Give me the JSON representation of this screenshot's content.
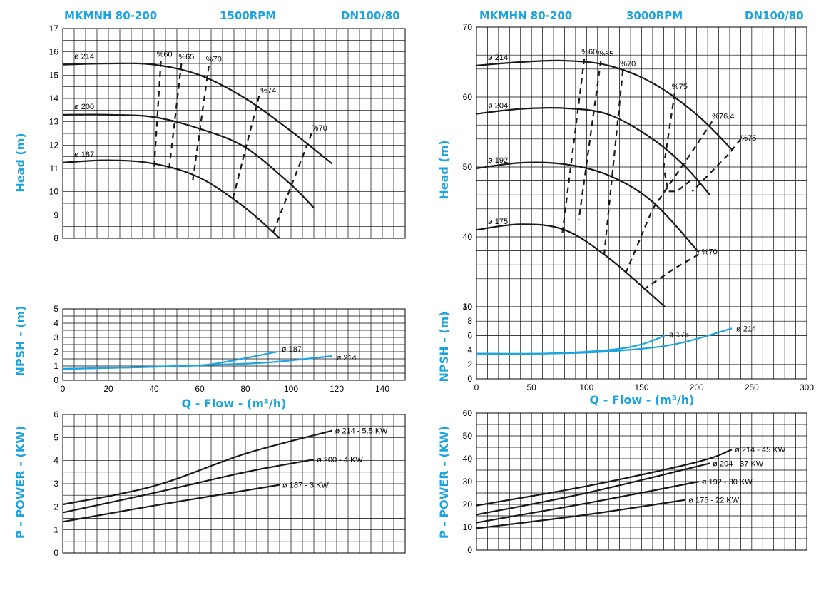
{
  "colors": {
    "accent": "#1ba4e0",
    "curve": "#1a1a1a",
    "npsh": "#1ba4e0",
    "grid": "#000000"
  },
  "left": {
    "header": {
      "model": "MKMNH 80-200",
      "speed": "1500RPM",
      "dn": "DN100/80"
    },
    "head_ylabel": "Head (m)",
    "npsh_ylabel": "NPSH - (m)",
    "power_ylabel": "P - POWER - (KW)",
    "xlabel": "Q - Flow - (m³/h)"
  },
  "right": {
    "header": {
      "model": "MKMHN 80-200",
      "speed": "3000RPM",
      "dn": "DN100/80"
    },
    "head_ylabel": "Head (m)",
    "npsh_ylabel": "NPSH - (m)",
    "power_ylabel": "P - POWER - (KW)",
    "xlabel": "Q - Flow - (m³/h)"
  },
  "chart_data": [
    {
      "id": "L-head",
      "type": "line",
      "xlim": [
        0,
        150
      ],
      "ylim": [
        8,
        17
      ],
      "xticks": [
        0,
        20,
        40,
        60,
        80,
        100,
        120,
        140
      ],
      "yticks": [
        8,
        9,
        10,
        11,
        12,
        13,
        14,
        15,
        16,
        17
      ],
      "series": [
        {
          "name": "ø 214",
          "kind": "curve",
          "x": [
            0,
            20,
            40,
            60,
            80,
            100,
            118
          ],
          "y": [
            15.45,
            15.5,
            15.45,
            15,
            14,
            12.6,
            11.2
          ]
        },
        {
          "name": "ø 200",
          "kind": "curve",
          "x": [
            0,
            20,
            40,
            60,
            80,
            100,
            110
          ],
          "y": [
            13.3,
            13.3,
            13.2,
            12.7,
            11.9,
            10.3,
            9.3
          ]
        },
        {
          "name": "ø 187",
          "kind": "curve",
          "x": [
            0,
            20,
            40,
            60,
            80,
            95
          ],
          "y": [
            11.25,
            11.35,
            11.2,
            10.6,
            9.3,
            8
          ]
        },
        {
          "name": "%60",
          "kind": "eff",
          "x": [
            43,
            40
          ],
          "y": [
            15.6,
            11
          ]
        },
        {
          "name": "%65",
          "kind": "eff",
          "x": [
            52,
            46.5
          ],
          "y": [
            15.5,
            10.9
          ]
        },
        {
          "name": "%70",
          "kind": "eff",
          "x": [
            64,
            57
          ],
          "y": [
            15.4,
            10.5
          ]
        },
        {
          "name": "%74",
          "kind": "eff",
          "x": [
            86,
            74
          ],
          "y": [
            14.1,
            9.5
          ]
        },
        {
          "name": "%70",
          "kind": "eff",
          "x": [
            109,
            92
          ],
          "y": [
            12.5,
            8.2
          ]
        }
      ]
    },
    {
      "id": "L-npsh",
      "type": "line",
      "xlim": [
        0,
        150
      ],
      "ylim": [
        0,
        5
      ],
      "yticks": [
        0,
        1,
        2,
        3,
        4,
        5
      ],
      "series": [
        {
          "name": "ø 187",
          "x": [
            0,
            30,
            60,
            75,
            94
          ],
          "y": [
            0.8,
            0.9,
            1.05,
            1.4,
            2.0
          ]
        },
        {
          "name": "ø 214",
          "x": [
            0,
            30,
            60,
            90,
            118
          ],
          "y": [
            0.8,
            0.9,
            1.05,
            1.25,
            1.7
          ]
        }
      ]
    },
    {
      "id": "L-power",
      "type": "line",
      "xlim": [
        0,
        150
      ],
      "ylim": [
        0,
        6
      ],
      "yticks": [
        0,
        1,
        2,
        3,
        4,
        5,
        6
      ],
      "series": [
        {
          "name": "ø 214 - 5.5 KW",
          "x": [
            0,
            40,
            80,
            118
          ],
          "y": [
            2.1,
            2.9,
            4.3,
            5.3
          ]
        },
        {
          "name": "ø 200 - 4 KW",
          "x": [
            0,
            40,
            80,
            110
          ],
          "y": [
            1.75,
            2.6,
            3.5,
            4.05
          ]
        },
        {
          "name": "ø 187 - 3 KW",
          "x": [
            0,
            40,
            95
          ],
          "y": [
            1.35,
            2.05,
            2.95
          ]
        }
      ]
    },
    {
      "id": "R-head",
      "type": "line",
      "xlim": [
        0,
        300
      ],
      "ylim": [
        30,
        70
      ],
      "xticks": [
        0,
        50,
        100,
        150,
        200,
        250,
        300
      ],
      "yticks": [
        30,
        40,
        50,
        60,
        70
      ],
      "series": [
        {
          "name": "ø 214",
          "kind": "curve",
          "x": [
            0,
            40,
            80,
            120,
            160,
            200,
            232
          ],
          "y": [
            64.5,
            65,
            65.2,
            64.5,
            62,
            57.5,
            52.5
          ]
        },
        {
          "name": "ø 204",
          "kind": "curve",
          "x": [
            0,
            40,
            80,
            120,
            160,
            190,
            212
          ],
          "y": [
            57.6,
            58.3,
            58.4,
            57.5,
            54,
            50,
            46
          ]
        },
        {
          "name": "ø 192",
          "kind": "curve",
          "x": [
            0,
            40,
            80,
            120,
            160,
            202
          ],
          "y": [
            49.8,
            50.6,
            50.4,
            48.8,
            45,
            37.8
          ]
        },
        {
          "name": "ø 175",
          "kind": "curve",
          "x": [
            0,
            40,
            80,
            120,
            171
          ],
          "y": [
            41,
            41.8,
            41,
            37,
            30
          ]
        },
        {
          "name": "%60",
          "kind": "eff",
          "x": [
            98,
            78
          ],
          "y": [
            65.5,
            40.5
          ]
        },
        {
          "name": "%65",
          "kind": "eff",
          "x": [
            113,
            93
          ],
          "y": [
            65.2,
            42.5
          ]
        },
        {
          "name": "%70",
          "kind": "eff",
          "x": [
            133,
            116
          ],
          "y": [
            63.8,
            37.5
          ]
        },
        {
          "name": "%75",
          "kind": "eff",
          "x": [
            180,
            170,
            174,
            182,
            194
          ],
          "y": [
            60.5,
            50,
            46.5,
            46.5,
            48
          ]
        },
        {
          "name": "%75",
          "kind": "eff",
          "x": [
            240,
            230,
            196
          ],
          "y": [
            54,
            52,
            46.5
          ]
        },
        {
          "name": "%76.4",
          "kind": "eff",
          "x": [
            214,
            195,
            160,
            136
          ],
          "y": [
            56.5,
            52,
            44,
            35
          ]
        },
        {
          "name": "%70",
          "kind": "eff",
          "x": [
            202,
            180,
            152
          ],
          "y": [
            37.5,
            35.5,
            32.5
          ]
        }
      ]
    },
    {
      "id": "R-npsh",
      "type": "line",
      "xlim": [
        0,
        300
      ],
      "ylim": [
        0,
        10
      ],
      "yticks": [
        0,
        2,
        4,
        6,
        8,
        10
      ],
      "series": [
        {
          "name": "ø 175",
          "x": [
            0,
            60,
            120,
            150,
            171
          ],
          "y": [
            3.5,
            3.5,
            4.0,
            4.8,
            6.0
          ]
        },
        {
          "name": "ø 214",
          "x": [
            0,
            60,
            120,
            180,
            232
          ],
          "y": [
            3.5,
            3.5,
            3.8,
            4.8,
            7.0
          ]
        }
      ]
    },
    {
      "id": "R-power",
      "type": "line",
      "xlim": [
        0,
        300
      ],
      "ylim": [
        0,
        60
      ],
      "yticks": [
        0,
        10,
        20,
        30,
        40,
        50,
        60
      ],
      "series": [
        {
          "name": "ø 214 - 45 KW",
          "x": [
            0,
            100,
            200,
            232
          ],
          "y": [
            19.5,
            28,
            38.5,
            44
          ]
        },
        {
          "name": "ø 204 - 37 KW",
          "x": [
            0,
            100,
            212
          ],
          "y": [
            15.5,
            25,
            38
          ]
        },
        {
          "name": "ø 192 - 30 KW",
          "x": [
            0,
            100,
            202
          ],
          "y": [
            12,
            20.5,
            30
          ]
        },
        {
          "name": "ø 175 - 22 KW",
          "x": [
            0,
            100,
            190
          ],
          "y": [
            9.5,
            15.5,
            22
          ]
        }
      ]
    }
  ]
}
